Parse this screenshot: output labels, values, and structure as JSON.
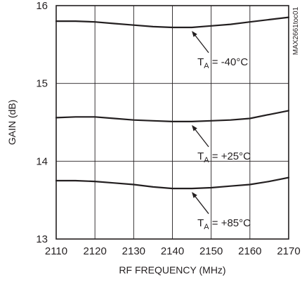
{
  "chart_data": {
    "type": "line",
    "title": "",
    "xlabel": "RF FREQUENCY (MHz)",
    "ylabel": "GAIN (dB)",
    "xlim": [
      2110,
      2170
    ],
    "ylim": [
      13,
      16
    ],
    "x_ticks": [
      2110,
      2120,
      2130,
      2140,
      2150,
      2160,
      2170
    ],
    "y_ticks": [
      13,
      14,
      15,
      16
    ],
    "grid": true,
    "legend": "none",
    "line_color": "#231f20",
    "side_label": "MAX2661toc01",
    "series": [
      {
        "name": "TA = -40°C",
        "x": [
          2110,
          2115,
          2120,
          2125,
          2130,
          2135,
          2140,
          2145,
          2150,
          2155,
          2160,
          2165,
          2170
        ],
        "y": [
          15.8,
          15.8,
          15.79,
          15.77,
          15.75,
          15.73,
          15.72,
          15.72,
          15.74,
          15.76,
          15.79,
          15.82,
          15.85
        ]
      },
      {
        "name": "TA = +25°C",
        "x": [
          2110,
          2115,
          2120,
          2125,
          2130,
          2135,
          2140,
          2145,
          2150,
          2155,
          2160,
          2165,
          2170
        ],
        "y": [
          14.56,
          14.57,
          14.57,
          14.55,
          14.53,
          14.52,
          14.51,
          14.51,
          14.52,
          14.53,
          14.55,
          14.6,
          14.65
        ]
      },
      {
        "name": "TA = +85°C",
        "x": [
          2110,
          2115,
          2120,
          2125,
          2130,
          2135,
          2140,
          2145,
          2150,
          2155,
          2160,
          2165,
          2170
        ],
        "y": [
          13.75,
          13.75,
          13.74,
          13.72,
          13.7,
          13.67,
          13.65,
          13.65,
          13.66,
          13.68,
          13.7,
          13.74,
          13.79
        ]
      }
    ],
    "annotations": [
      {
        "main": "T",
        "sub": "A",
        "rest": " = -40°C",
        "series": 0,
        "x": 2145
      },
      {
        "main": "T",
        "sub": "A",
        "rest": " = +25°C",
        "series": 1,
        "x": 2145
      },
      {
        "main": "T",
        "sub": "A",
        "rest": " = +85°C",
        "series": 2,
        "x": 2145
      }
    ]
  }
}
